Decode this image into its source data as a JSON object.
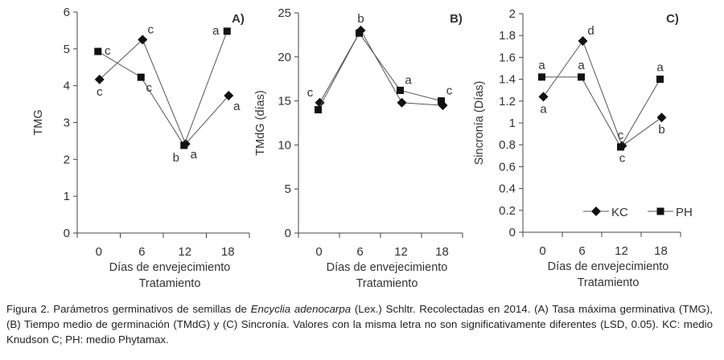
{
  "chart_data": [
    {
      "type": "line",
      "panel_label": "A)",
      "ylabel": "TMG",
      "xlabel": "Días de envejecimiento",
      "xlabel2": "Tratamiento",
      "categories": [
        "0",
        "6",
        "12",
        "18"
      ],
      "ylim": [
        0,
        6
      ],
      "yticks": [
        "0",
        "1",
        "2",
        "3",
        "4",
        "5",
        "6"
      ],
      "grid": false,
      "series": [
        {
          "name": "KC",
          "marker": "diamond",
          "values": [
            4.17,
            5.25,
            2.42,
            3.73
          ],
          "letters": [
            "c",
            "c",
            "a",
            "a"
          ],
          "letter_pos": [
            "below",
            "above-right",
            "below-right",
            "below-right"
          ]
        },
        {
          "name": "PH",
          "marker": "square",
          "values": [
            4.93,
            4.23,
            2.38,
            5.48
          ],
          "letters": [
            "c",
            "c",
            "b",
            "a"
          ],
          "letter_pos": [
            "right",
            "below-right",
            "below-left",
            "left"
          ]
        }
      ]
    },
    {
      "type": "line",
      "panel_label": "B)",
      "ylabel": "TMdG (días)",
      "xlabel": "Días de envejecimiento",
      "xlabel2": "Tratamiento",
      "categories": [
        "0",
        "6",
        "12",
        "18"
      ],
      "ylim": [
        0,
        25
      ],
      "yticks": [
        "0",
        "5",
        "10",
        "15",
        "20",
        "25"
      ],
      "grid": false,
      "series": [
        {
          "name": "KC",
          "marker": "diamond",
          "values": [
            14.8,
            23.0,
            14.8,
            14.5
          ],
          "letters": [
            "c",
            "b",
            "",
            ""
          ],
          "letter_pos": [
            "above-left",
            "above",
            "",
            ""
          ]
        },
        {
          "name": "PH",
          "marker": "square",
          "values": [
            14.0,
            22.7,
            16.2,
            15.0
          ],
          "letters": [
            "",
            "",
            "a",
            "c"
          ],
          "letter_pos": [
            "",
            "",
            "above-right",
            "above-right"
          ]
        }
      ]
    },
    {
      "type": "line",
      "panel_label": "C)",
      "ylabel": "Sincronía (Días)",
      "xlabel": "Días de envejecimiento",
      "xlabel2": "Tratamiento",
      "categories": [
        "0",
        "6",
        "12",
        "18"
      ],
      "ylim": [
        0,
        2
      ],
      "yticks": [
        "0",
        "0.2",
        "0.4",
        "0.6",
        "0.8",
        "1",
        "1.2",
        "1.4",
        "1.6",
        "1.8",
        "2"
      ],
      "grid": false,
      "legend": "bottom-right",
      "series": [
        {
          "name": "KC",
          "marker": "diamond",
          "values": [
            1.24,
            1.75,
            0.79,
            1.05
          ],
          "letters": [
            "a",
            "d",
            "c",
            "b"
          ],
          "letter_pos": [
            "below",
            "above-right",
            "below",
            "below"
          ]
        },
        {
          "name": "PH",
          "marker": "square",
          "values": [
            1.42,
            1.42,
            0.78,
            1.4
          ],
          "letters": [
            "a",
            "a",
            "c",
            "a"
          ],
          "letter_pos": [
            "above",
            "above",
            "above",
            "above"
          ]
        }
      ]
    }
  ],
  "caption": {
    "prefix": "Figura 2. Parámetros germinativos de semillas de ",
    "species": "Encyclia adenocarpa",
    "suffix": " (Lex.) Schltr. Recolectadas en 2014. (A) Tasa máxima germinativa (TMG), (B) Tiempo medio de germinación (TMdG) y (C) Sincronía. Valores con la misma letra no son significativamente diferentes (LSD, 0.05). KC: medio Knudson C; PH: medio Phytamax."
  },
  "colors": {
    "line": "#555555",
    "marker": "#111111",
    "text": "#333333"
  }
}
